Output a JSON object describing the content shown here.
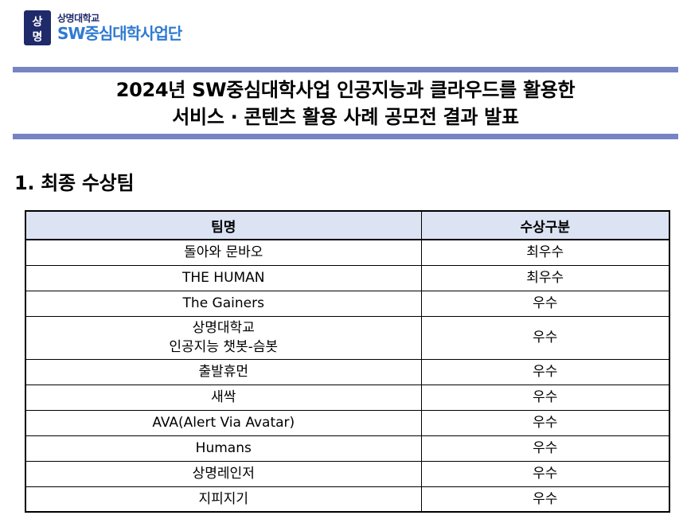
{
  "logo": {
    "mark_glyphs": "상명",
    "university": "상명대학교",
    "program": "SW중심대학사업단",
    "colors": {
      "university": "#1f2a6b",
      "program": "#2f7ad1",
      "mark": "#1f2a6b"
    }
  },
  "header": {
    "title_line1": "2024년 SW중심대학사업 인공지능과 클라우드를 활용한",
    "title_line2": "서비스 · 콘텐츠 활용 사례 공모전 결과 발표",
    "bar_color": "#7784c4"
  },
  "section": {
    "heading": "1. 최종 수상팀"
  },
  "table": {
    "headers": {
      "team": "팀명",
      "award": "수상구분"
    },
    "header_bg": "#dce3f3",
    "rows": [
      {
        "team": [
          "돌아와 문바오"
        ],
        "award": "최우수"
      },
      {
        "team": [
          "THE HUMAN"
        ],
        "award": "최우수"
      },
      {
        "team": [
          "The Gainers"
        ],
        "award": "우수"
      },
      {
        "team": [
          "상명대학교",
          "인공지능 챗봇-슴봇"
        ],
        "award": "우수"
      },
      {
        "team": [
          "출발휴먼"
        ],
        "award": "우수"
      },
      {
        "team": [
          "새싹"
        ],
        "award": "우수"
      },
      {
        "team": [
          "AVA(Alert Via Avatar)"
        ],
        "award": "우수"
      },
      {
        "team": [
          "Humans"
        ],
        "award": "우수"
      },
      {
        "team": [
          "상명레인저"
        ],
        "award": "우수"
      },
      {
        "team": [
          "지피지기"
        ],
        "award": "우수"
      }
    ]
  }
}
